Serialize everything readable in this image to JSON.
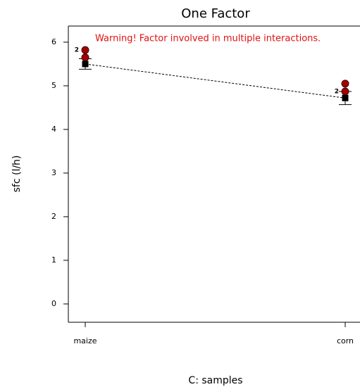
{
  "chart_data": {
    "type": "line",
    "title": "One Factor",
    "x_label": "C: samples",
    "y_label": "sfc (l/h)",
    "annotation": "Warning! Factor involved in multiple interactions.",
    "categories": [
      "maize",
      "corn"
    ],
    "ylim": [
      -0.42,
      6.37
    ],
    "yticks": [
      0,
      1,
      2,
      3,
      4,
      5,
      6
    ],
    "predicted": {
      "values": [
        5.5,
        4.72
      ],
      "low": [
        5.38,
        4.57
      ],
      "high": [
        5.62,
        4.87
      ],
      "color": "#000000"
    },
    "design_points": {
      "color": "#a00000",
      "points": [
        {
          "category": 0,
          "value": 5.82,
          "label": "2"
        },
        {
          "category": 0,
          "value": 5.65
        },
        {
          "category": 1,
          "value": 5.05
        },
        {
          "category": 1,
          "value": 4.87,
          "label": "2"
        }
      ]
    }
  }
}
